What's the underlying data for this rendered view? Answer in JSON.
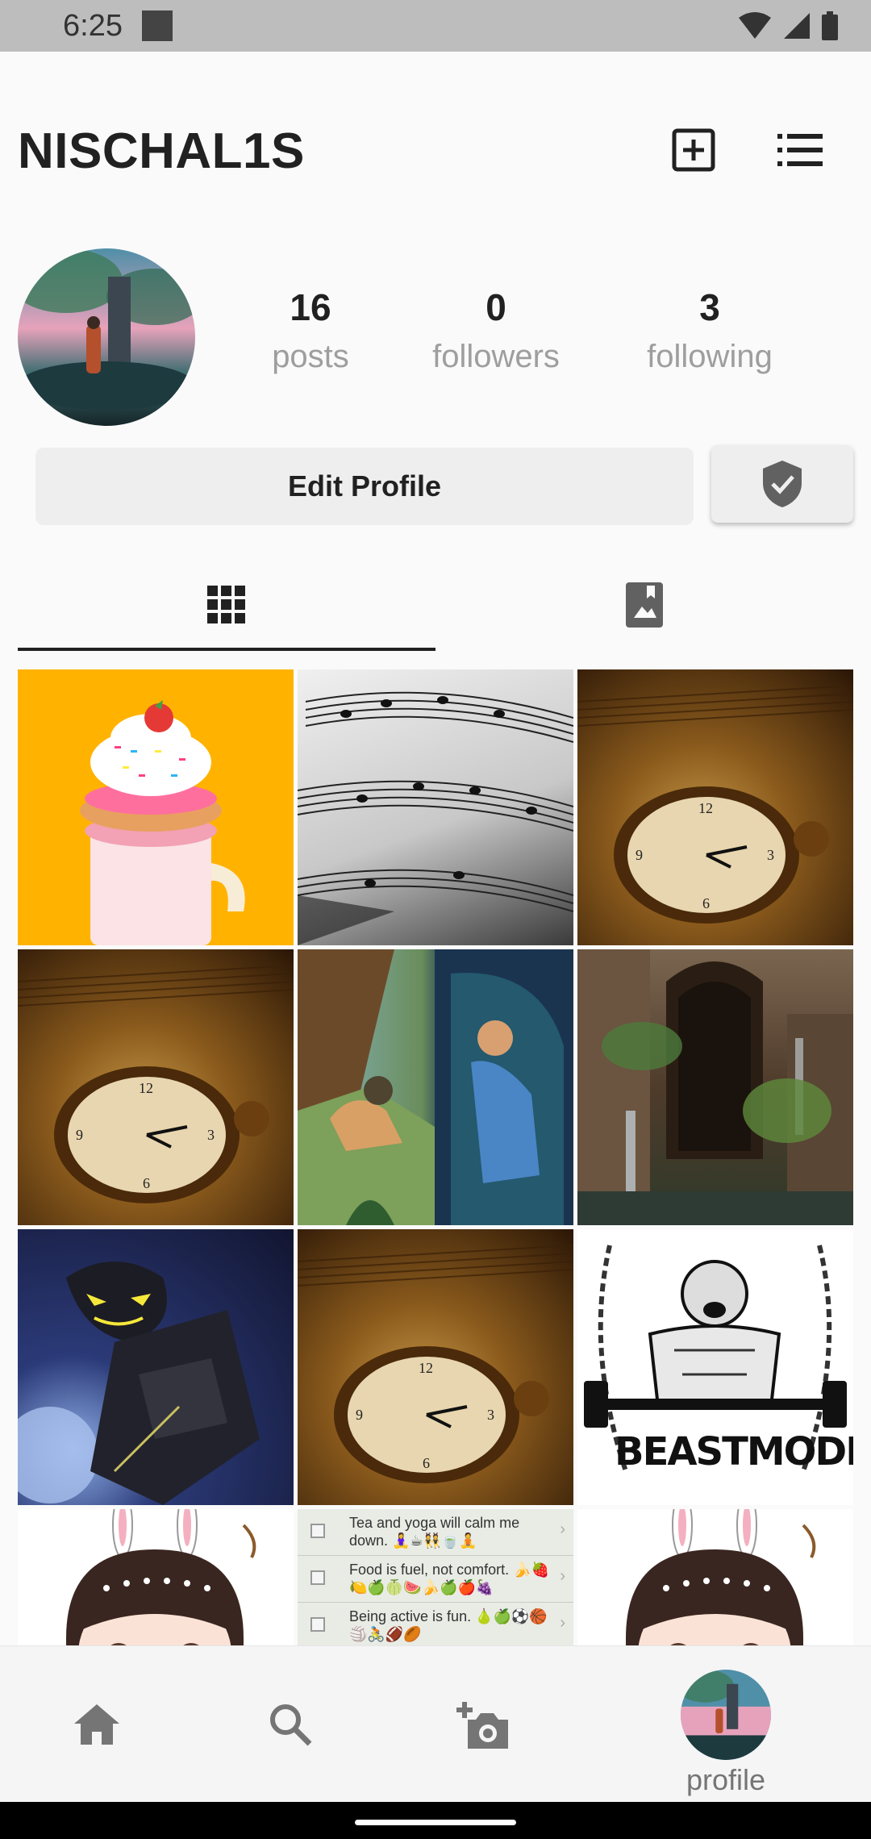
{
  "status_bar": {
    "time": "6:25"
  },
  "header": {
    "username": "NISCHAL1S"
  },
  "profile": {
    "stats": [
      {
        "value": "16",
        "label": "posts"
      },
      {
        "value": "0",
        "label": "followers"
      },
      {
        "value": "3",
        "label": "following"
      }
    ],
    "edit_button_label": "Edit Profile"
  },
  "tabs": {
    "active": "grid"
  },
  "posts": [
    {
      "kind": "donut-milkshake"
    },
    {
      "kind": "sheet-music"
    },
    {
      "kind": "pocket-watch"
    },
    {
      "kind": "pocket-watch"
    },
    {
      "kind": "cartoon-scene"
    },
    {
      "kind": "ancient-ruins"
    },
    {
      "kind": "robot-warrior"
    },
    {
      "kind": "pocket-watch"
    },
    {
      "kind": "beastmode-illustration",
      "text": "BEASTMODE"
    },
    {
      "kind": "anime-girl"
    },
    {
      "kind": "checklist",
      "items": [
        "Tea and yoga will calm me down. 🧘‍♀️☕👯🍵🧘",
        "Food is fuel, not comfort. 🍌🍓🍋🍏🍈🍉🍌🍏🍎🍇",
        "Being active is fun. 🍐🍏⚽🏀🏐🚴🏈🏉"
      ]
    },
    {
      "kind": "anime-girl"
    }
  ],
  "bottom_nav": {
    "profile_label": "profile"
  },
  "colors": {
    "background": "#fafafa",
    "text": "#212121",
    "muted": "#9e9e9e",
    "button": "#eeeeee"
  }
}
